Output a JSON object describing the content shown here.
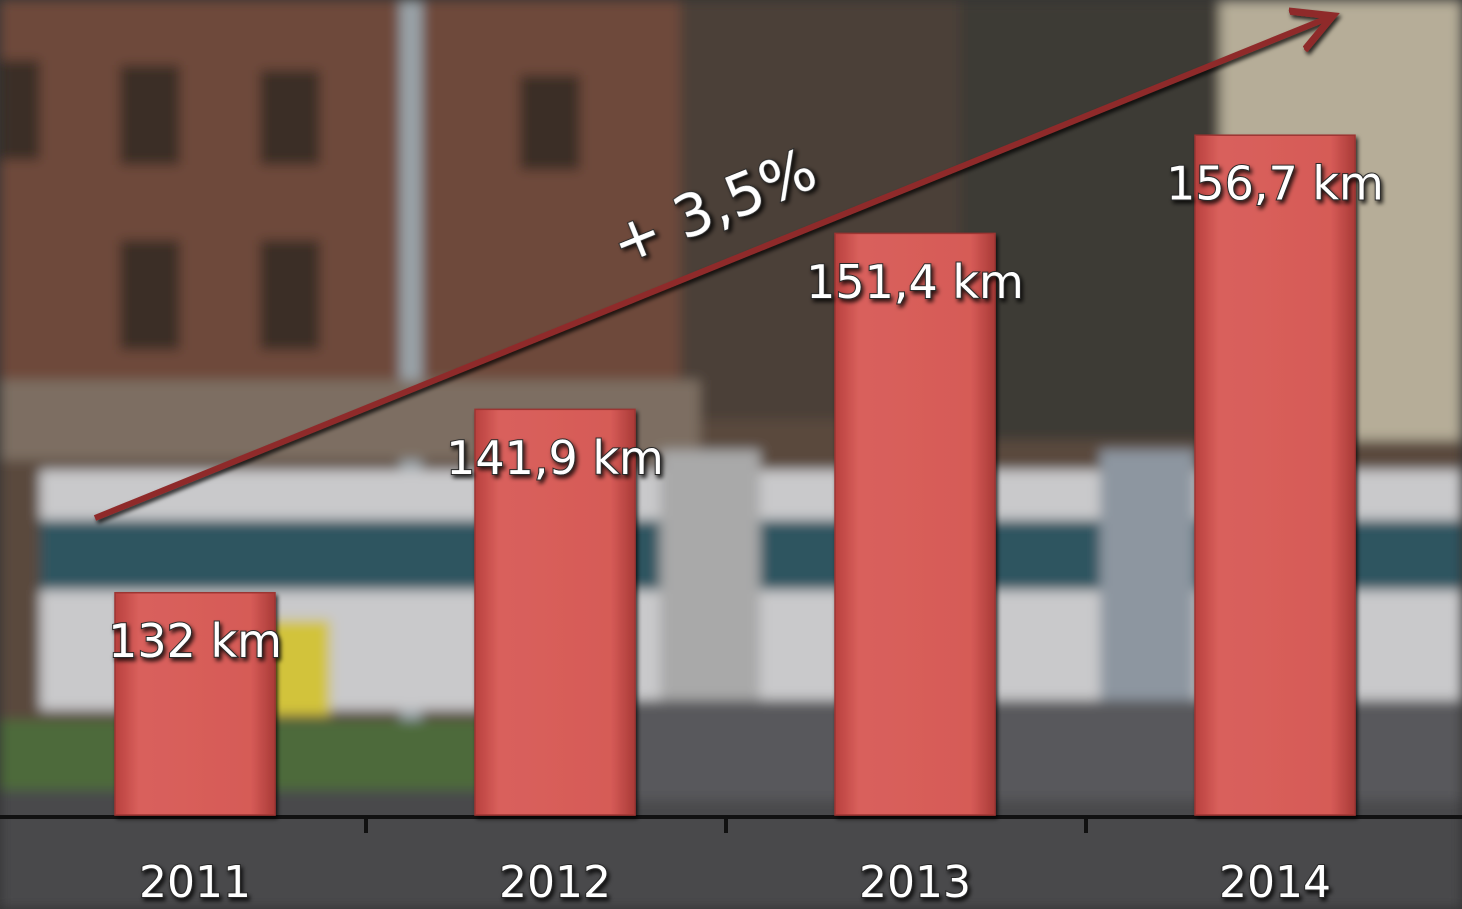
{
  "chart_data": {
    "type": "bar",
    "categories": [
      "2011",
      "2012",
      "2013",
      "2014"
    ],
    "values": [
      132,
      141.9,
      151.4,
      156.7
    ],
    "value_labels": [
      "132 km",
      "141,9 km",
      "151,4 km",
      "156,7 km"
    ],
    "color": "#d4524f",
    "ylim": [
      120,
      164
    ],
    "annotation": "+ 3,5%"
  }
}
